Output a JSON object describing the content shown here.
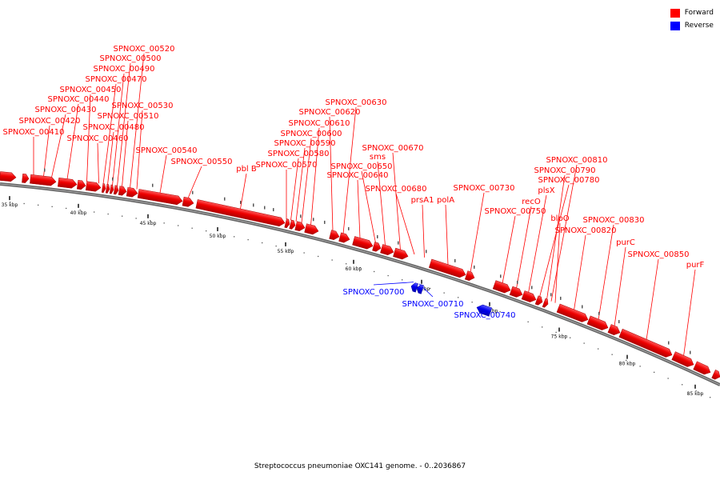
{
  "legend": {
    "forward_label": "Forward",
    "reverse_label": "Reverse",
    "forward_color": "#ff0000",
    "reverse_color": "#0000ff"
  },
  "caption": "Streptococcus pneumoniae OXC141 genome. - 0..2036867",
  "scale": {
    "tick_labels": [
      "35 kbp",
      "40 kbp",
      "45 kbp",
      "50 kbp",
      "55 kbp",
      "60 kbp",
      "65 kbp",
      "70 kbp",
      "75 kbp",
      "80 kbp",
      "85 kbp"
    ]
  },
  "features": [
    {
      "name": "SPNOXC_00410",
      "strand": "forward"
    },
    {
      "name": "SPNOXC_00420",
      "strand": "forward"
    },
    {
      "name": "SPNOXC_00430",
      "strand": "forward"
    },
    {
      "name": "SPNOXC_00440",
      "strand": "forward"
    },
    {
      "name": "SPNOXC_00450",
      "strand": "forward"
    },
    {
      "name": "SPNOXC_00460",
      "strand": "forward"
    },
    {
      "name": "SPNOXC_00470",
      "strand": "forward"
    },
    {
      "name": "SPNOXC_00480",
      "strand": "forward"
    },
    {
      "name": "SPNOXC_00490",
      "strand": "forward"
    },
    {
      "name": "SPNOXC_00500",
      "strand": "forward"
    },
    {
      "name": "SPNOXC_00510",
      "strand": "forward"
    },
    {
      "name": "SPNOXC_00520",
      "strand": "forward"
    },
    {
      "name": "SPNOXC_00530",
      "strand": "forward"
    },
    {
      "name": "SPNOXC_00540",
      "strand": "forward"
    },
    {
      "name": "SPNOXC_00550",
      "strand": "forward"
    },
    {
      "name": "pbl B",
      "strand": "forward"
    },
    {
      "name": "SPNOXC_00570",
      "strand": "forward"
    },
    {
      "name": "SPNOXC_00580",
      "strand": "forward"
    },
    {
      "name": "SPNOXC_00590",
      "strand": "forward"
    },
    {
      "name": "SPNOXC_00600",
      "strand": "forward"
    },
    {
      "name": "SPNOXC_00610",
      "strand": "forward"
    },
    {
      "name": "SPNOXC_00620",
      "strand": "forward"
    },
    {
      "name": "SPNOXC_00630",
      "strand": "forward"
    },
    {
      "name": "SPNOXC_00640",
      "strand": "forward"
    },
    {
      "name": "SPNOXC_00650",
      "strand": "forward"
    },
    {
      "name": "sms",
      "strand": "forward"
    },
    {
      "name": "SPNOXC_00670",
      "strand": "forward"
    },
    {
      "name": "SPNOXC_00680",
      "strand": "forward"
    },
    {
      "name": "prsA1",
      "strand": "forward"
    },
    {
      "name": "polA",
      "strand": "forward"
    },
    {
      "name": "SPNOXC_00700",
      "strand": "reverse"
    },
    {
      "name": "SPNOXC_00710",
      "strand": "reverse"
    },
    {
      "name": "SPNOXC_00730",
      "strand": "forward"
    },
    {
      "name": "SPNOXC_00740",
      "strand": "reverse"
    },
    {
      "name": "SPNOXC_00750",
      "strand": "forward"
    },
    {
      "name": "recO",
      "strand": "forward"
    },
    {
      "name": "plsX",
      "strand": "forward"
    },
    {
      "name": "SPNOXC_00780",
      "strand": "forward"
    },
    {
      "name": "SPNOXC_00790",
      "strand": "forward"
    },
    {
      "name": "SPNOXC_00810",
      "strand": "forward"
    },
    {
      "name": "blpO",
      "strand": "forward"
    },
    {
      "name": "SPNOXC_00820",
      "strand": "forward"
    },
    {
      "name": "SPNOXC_00830",
      "strand": "forward"
    },
    {
      "name": "purC",
      "strand": "forward"
    },
    {
      "name": "SPNOXC_00850",
      "strand": "forward"
    },
    {
      "name": "purF",
      "strand": "forward"
    }
  ]
}
